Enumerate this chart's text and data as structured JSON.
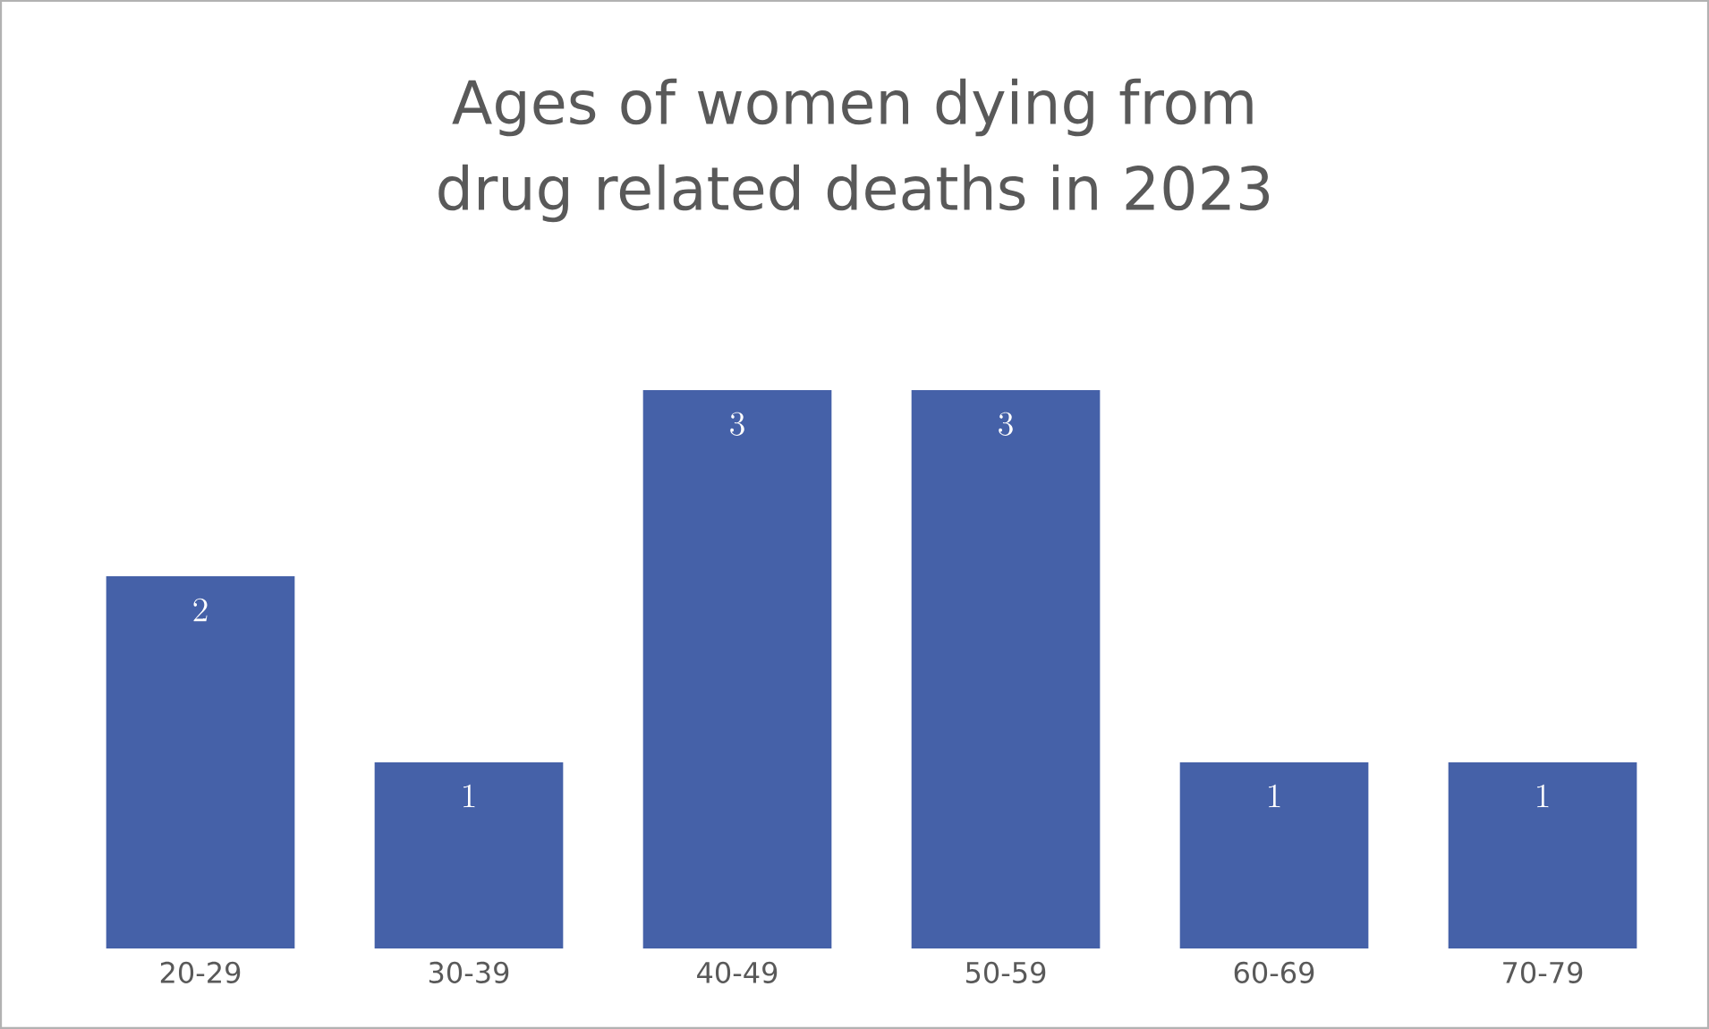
{
  "chart_data": {
    "type": "bar",
    "title": "Ages of women dying from drug related deaths in 2023",
    "categories": [
      "20-29",
      "30-39",
      "40-49",
      "50-59",
      "60-69",
      "70-79"
    ],
    "values": [
      2,
      1,
      3,
      3,
      1,
      1
    ],
    "color": "#4561a8",
    "data_labels": true
  }
}
